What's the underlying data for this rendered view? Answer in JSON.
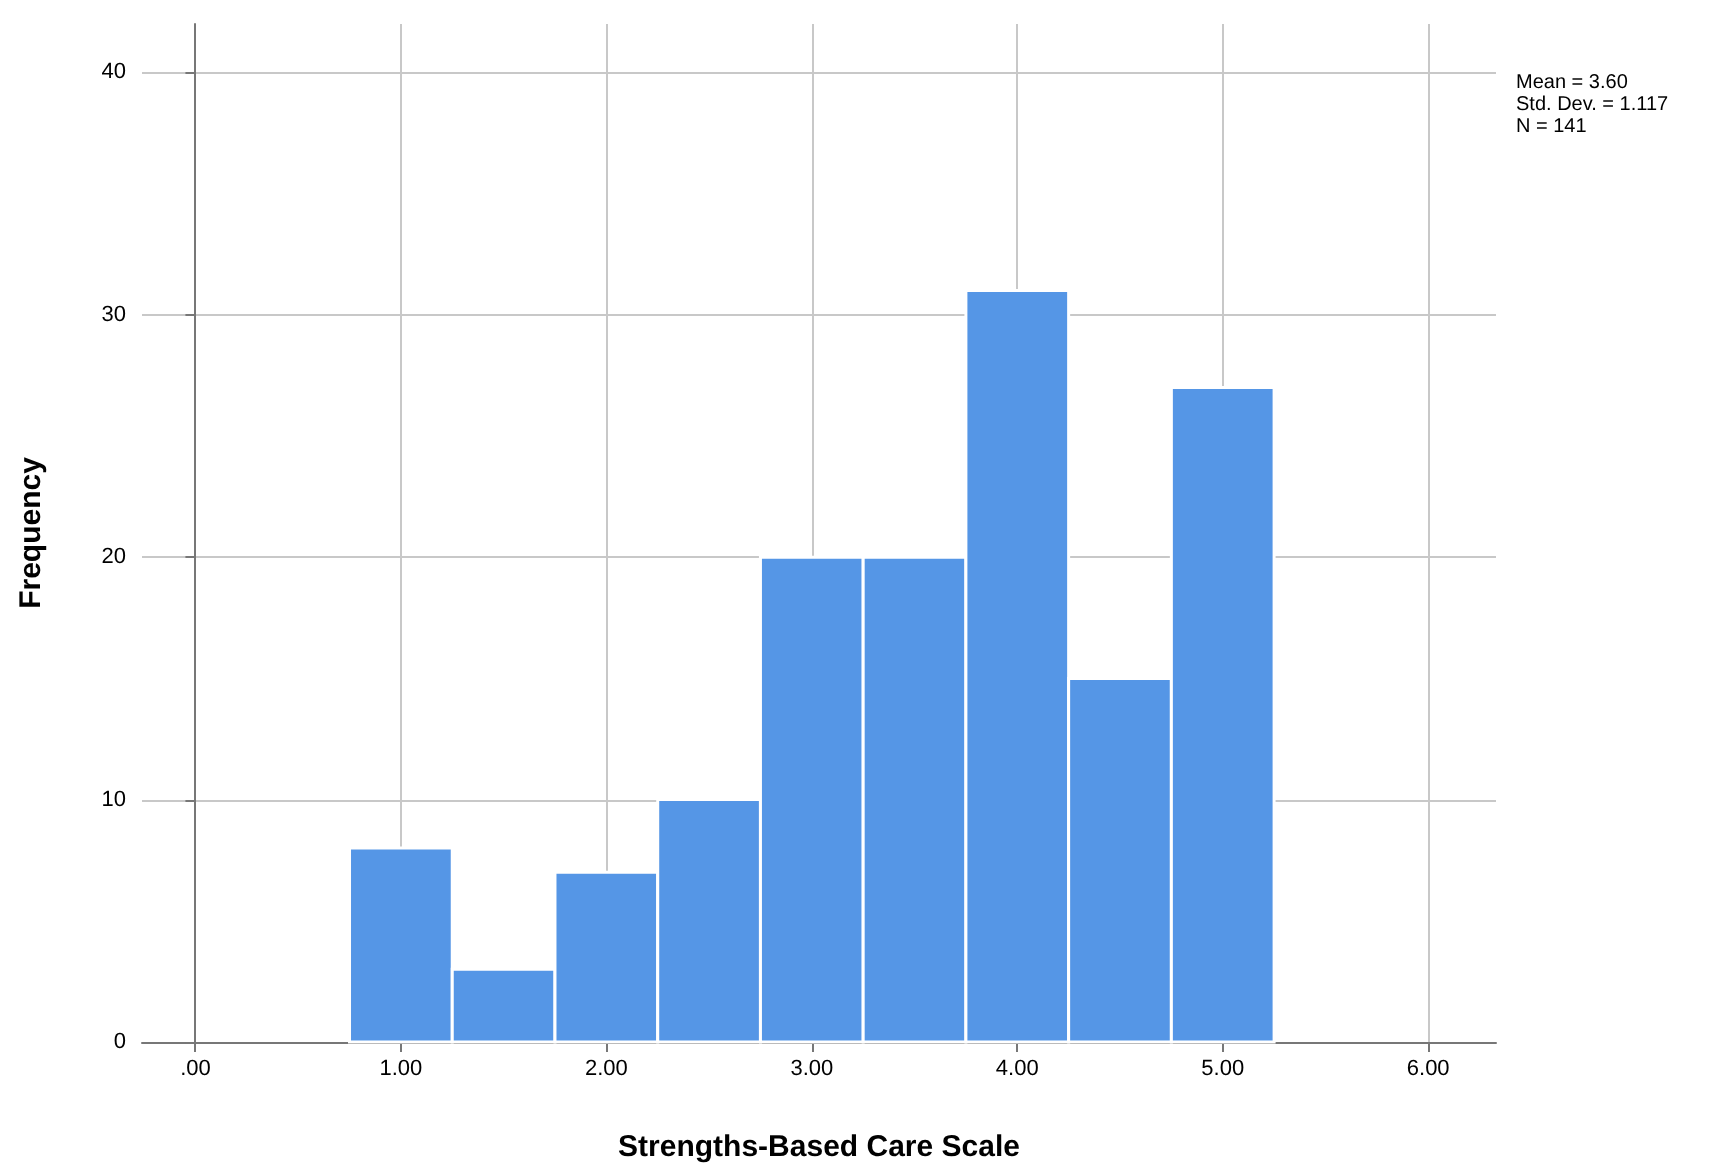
{
  "chart_data": {
    "type": "histogram",
    "xlabel": "Strengths-Based Care Scale",
    "ylabel": "Frequency",
    "bins": [
      0.75,
      1.25,
      1.75,
      2.25,
      2.75,
      3.25,
      3.75,
      4.25,
      4.75,
      5.25
    ],
    "values": [
      8,
      3,
      7,
      10,
      20,
      20,
      31,
      15,
      27
    ],
    "color": "#5596e6",
    "xlim": [
      -0.26,
      6.33
    ],
    "xticks": [
      {
        "value": 0,
        "label": ".00"
      },
      {
        "value": 1,
        "label": "1.00"
      },
      {
        "value": 2,
        "label": "2.00"
      },
      {
        "value": 3,
        "label": "3.00"
      },
      {
        "value": 4,
        "label": "4.00"
      },
      {
        "value": 5,
        "label": "5.00"
      },
      {
        "value": 6,
        "label": "6.00"
      }
    ],
    "ylim": [
      0,
      42
    ],
    "yticks": [
      0,
      10,
      20,
      30,
      40
    ],
    "grid": true,
    "annotations": [
      "Mean = 3.60",
      "Std. Dev. = 1.117",
      "N = 141"
    ]
  }
}
